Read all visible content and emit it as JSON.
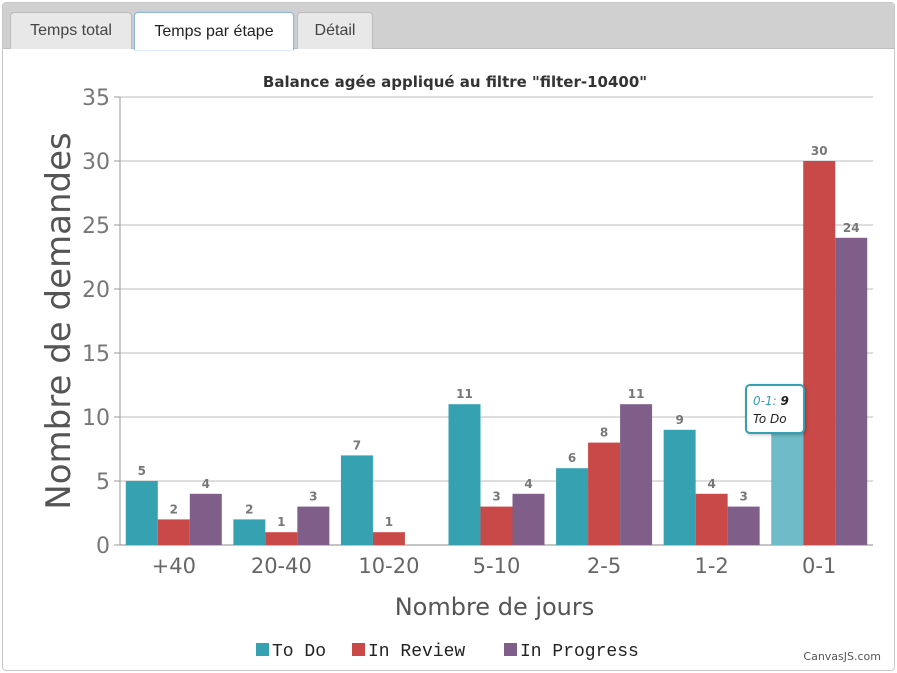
{
  "tabs": [
    {
      "label": "Temps total",
      "active": false
    },
    {
      "label": "Temps par étape",
      "active": true
    },
    {
      "label": "Détail",
      "active": false
    }
  ],
  "chart_data": {
    "type": "bar",
    "title": "Balance agée appliqué au filtre \"filter-10400\"",
    "xlabel": "Nombre de jours",
    "ylabel": "Nombre de demandes",
    "categories": [
      "+40",
      "20-40",
      "10-20",
      "5-10",
      "2-5",
      "1-2",
      "0-1"
    ],
    "ylim": [
      0,
      35
    ],
    "yticks": [
      0,
      5,
      10,
      15,
      20,
      25,
      30,
      35
    ],
    "grid": true,
    "legend_position": "bottom",
    "series": [
      {
        "name": "To Do",
        "color": "#36a2b1",
        "values": [
          5,
          2,
          7,
          11,
          6,
          9,
          9
        ]
      },
      {
        "name": "In Review",
        "color": "#c94948",
        "values": [
          2,
          1,
          1,
          3,
          8,
          4,
          30
        ]
      },
      {
        "name": "In Progress",
        "color": "#7f5f8a",
        "values": [
          4,
          3,
          0,
          4,
          11,
          3,
          24
        ]
      }
    ],
    "highlight": {
      "series": 0,
      "category": 6,
      "color": "#6fbcc8"
    },
    "tooltip": {
      "category": "0-1",
      "separator": ":",
      "value": "9",
      "series": "To Do"
    }
  },
  "watermark": "CanvasJS.com"
}
